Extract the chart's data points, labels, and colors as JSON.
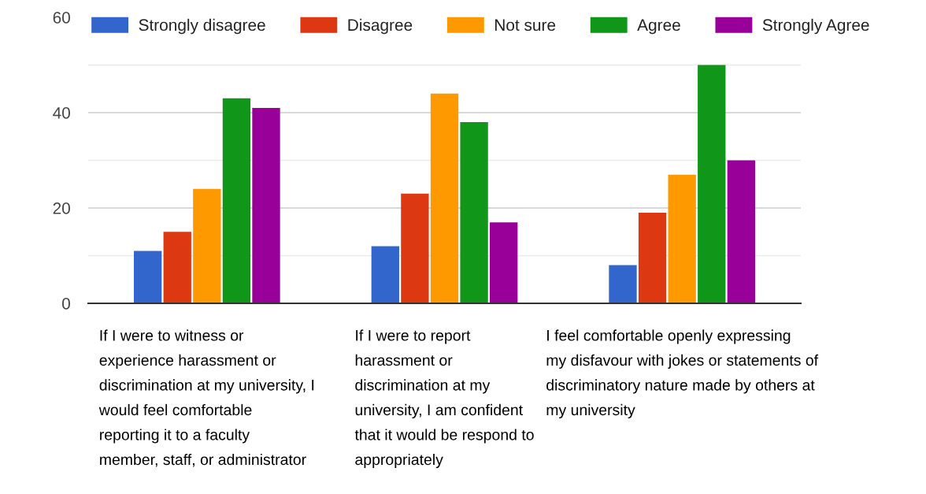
{
  "chart_data": {
    "type": "bar",
    "categories": [
      "If I were to witness or\nexperience harassment or\ndiscrimination at my university, I\nwould feel comfortable\nreporting it to a faculty\nmember, staff, or administrator",
      "If I were to report\nharassment or\ndiscrimination at my\nuniversity, I am confident\nthat it would be respond to\nappropriately",
      "I feel comfortable openly expressing\nmy disfavour with jokes or statements of\ndiscriminatory nature made by others at\nmy university"
    ],
    "series": [
      {
        "name": "Strongly disagree",
        "color": "#3366cc",
        "values": [
          11,
          12,
          8
        ]
      },
      {
        "name": "Disagree",
        "color": "#dc3912",
        "values": [
          15,
          23,
          19
        ]
      },
      {
        "name": "Not sure",
        "color": "#ff9900",
        "values": [
          24,
          44,
          27
        ]
      },
      {
        "name": "Agree",
        "color": "#109618",
        "values": [
          43,
          38,
          50
        ]
      },
      {
        "name": "Strongly Agree",
        "color": "#990099",
        "values": [
          41,
          17,
          30
        ]
      }
    ],
    "ylim": [
      0,
      60
    ],
    "yticks": [
      0,
      {
        "value": 10,
        "label": null
      },
      20,
      {
        "value": 30,
        "label": null
      },
      40,
      {
        "value": 50,
        "label": null
      },
      60
    ],
    "grid": "y",
    "legend": "top"
  }
}
